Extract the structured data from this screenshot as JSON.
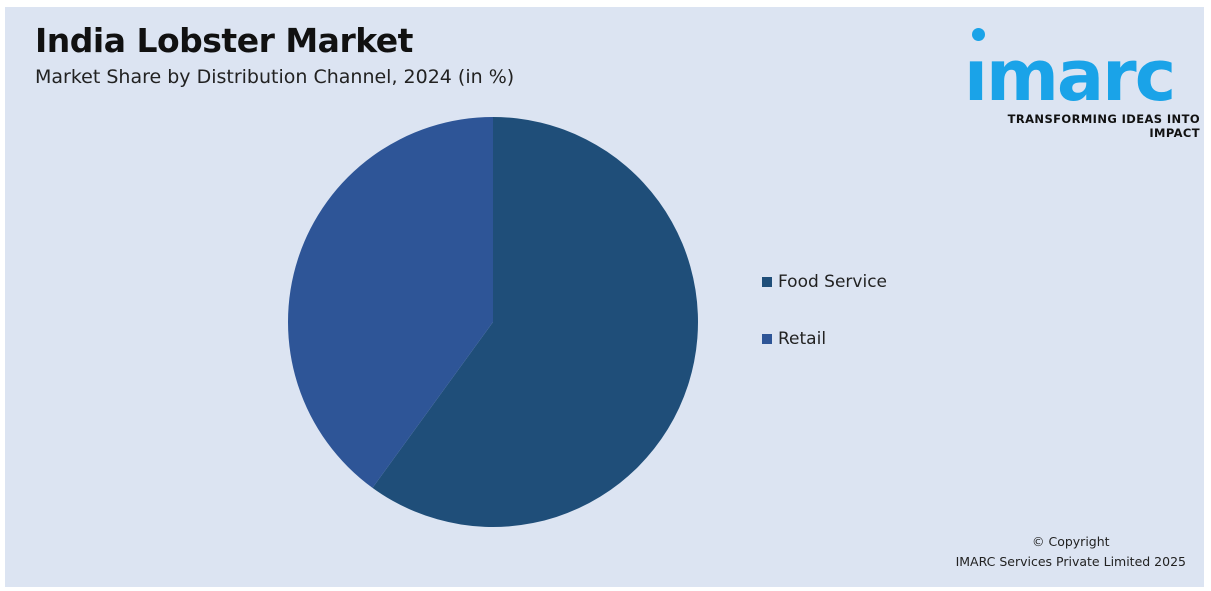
{
  "header": {
    "title": "India Lobster Market",
    "subtitle": "Market Share by Distribution Channel, 2024 (in %)"
  },
  "logo": {
    "word": "ımarc",
    "tagline": "TRANSFORMING IDEAS INTO IMPACT",
    "color": "#1aa3e8"
  },
  "chart_data": {
    "type": "pie",
    "categories": [
      "Food Service",
      "Retail"
    ],
    "values": [
      60,
      40
    ],
    "colors": [
      "#1f4e79",
      "#2e5597"
    ],
    "start_angle_deg": 0,
    "direction": "clockwise",
    "legend_position": "right"
  },
  "footer": {
    "copyright_line1": "© Copyright",
    "copyright_line2": "IMARC Services Private Limited 2025"
  }
}
